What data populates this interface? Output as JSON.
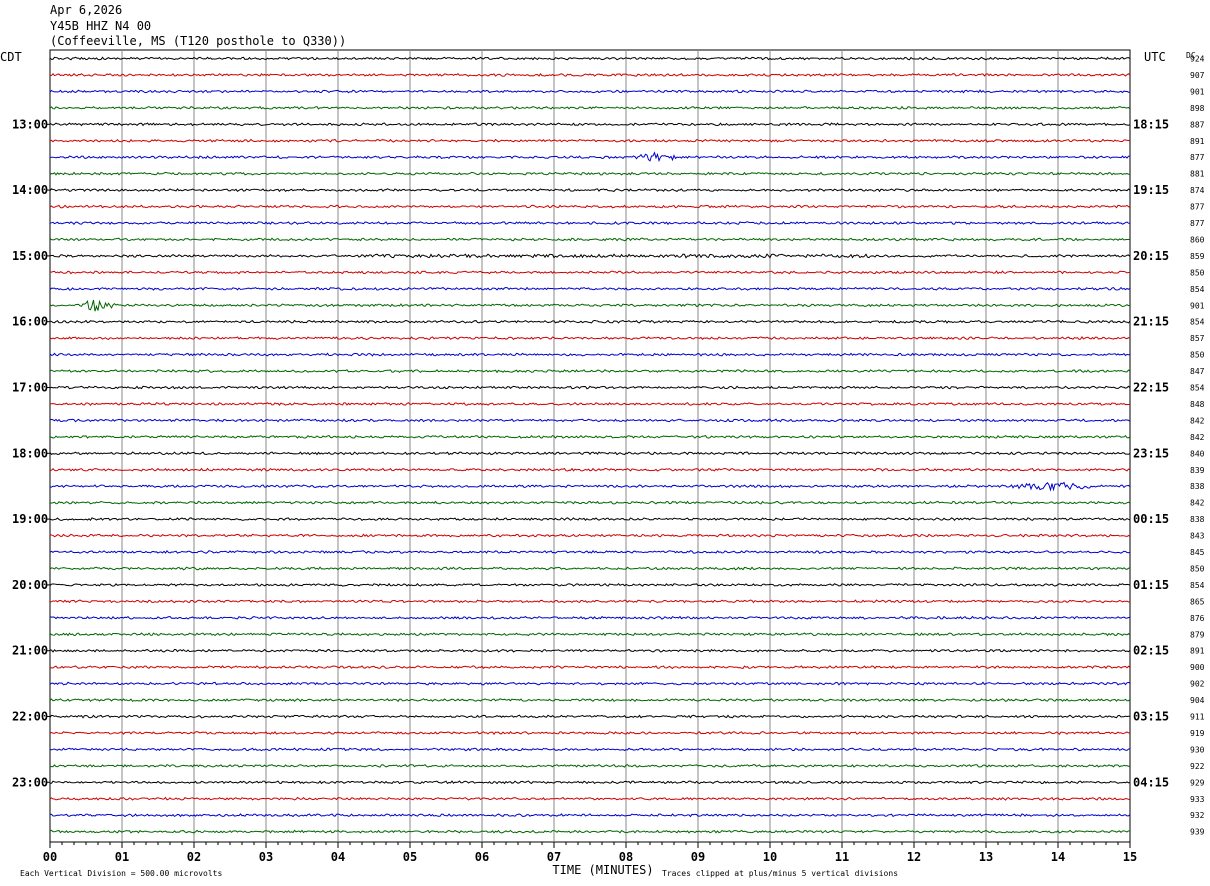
{
  "header": {
    "date": "Apr 6,2026",
    "station": "Y45B HHZ N4 00",
    "location": "(Coffeeville, MS (T120 posthole to Q330))"
  },
  "chart_data": {
    "type": "line",
    "title": "Y45B HHZ N4 00 helicorder",
    "left_timezone": "CDT",
    "right_timezone": "UTC",
    "dc_label": "DC",
    "left_hour_labels": [
      "13:00",
      "14:00",
      "15:00",
      "16:00",
      "17:00",
      "18:00",
      "19:00",
      "20:00",
      "21:00",
      "22:00",
      "23:00"
    ],
    "right_hour_labels": [
      "18:15",
      "19:15",
      "20:15",
      "21:15",
      "22:15",
      "23:15",
      "00:15",
      "01:15",
      "02:15",
      "03:15",
      "04:15"
    ],
    "first_labeled_trace_index": 4,
    "traces_per_hour": 4,
    "trace_colors": [
      "#000000",
      "#cc0000",
      "#0000cc",
      "#006600"
    ],
    "dc_offsets": [
      924,
      907,
      901,
      898,
      887,
      891,
      877,
      881,
      874,
      877,
      877,
      860,
      859,
      850,
      854,
      901,
      854,
      857,
      850,
      847,
      854,
      848,
      842,
      842,
      840,
      839,
      838,
      842,
      838,
      843,
      845,
      850,
      854,
      865,
      876,
      879,
      891,
      900,
      902,
      904,
      911,
      919,
      930,
      922,
      929,
      933,
      932,
      939
    ],
    "x_ticks": [
      "00",
      "01",
      "02",
      "03",
      "04",
      "05",
      "06",
      "07",
      "08",
      "09",
      "10",
      "11",
      "12",
      "13",
      "14",
      "15"
    ],
    "x_range": [
      0,
      15
    ],
    "xlabel": "TIME (MINUTES)",
    "footer_left": "Each Vertical Division =  500.00 microvolts",
    "footer_right": "Traces clipped at plus/minus 5 vertical divisions",
    "grid": true,
    "events": [
      {
        "trace": 6,
        "start_min": 8.1,
        "end_min": 8.9,
        "amplitude": 5
      },
      {
        "trace": 12,
        "start_min": 4.5,
        "end_min": 11.5,
        "amplitude": 1.6
      },
      {
        "trace": 15,
        "start_min": 0.4,
        "end_min": 1.1,
        "amplitude": 7
      },
      {
        "trace": 26,
        "start_min": 13.3,
        "end_min": 14.8,
        "amplitude": 5
      }
    ]
  }
}
